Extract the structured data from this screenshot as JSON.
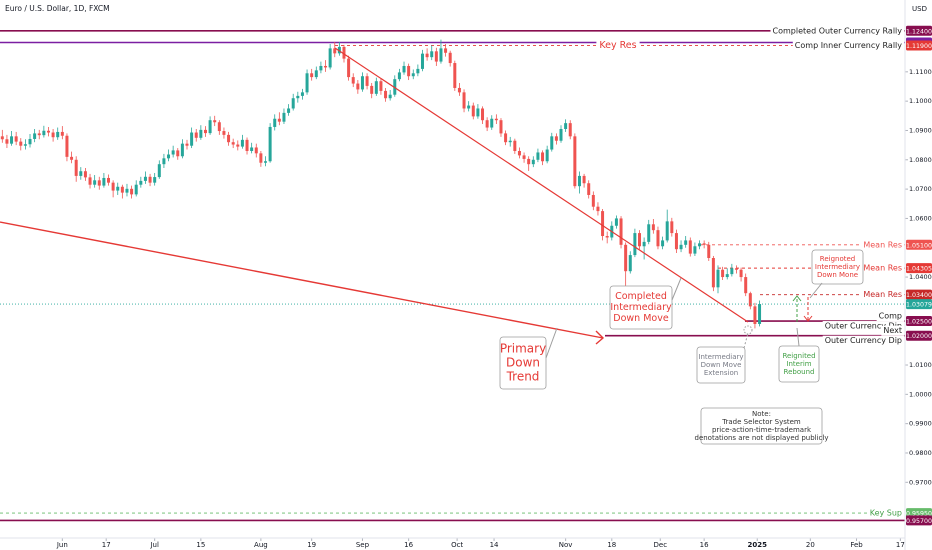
{
  "chart_data": {
    "type": "candlestick",
    "title": "Euro / U.S. Dollar, 1D, FXCM",
    "currency": "USD",
    "up_color": "#26a69a",
    "down_color": "#ef5350",
    "xlim": [
      -0.5,
      195.5
    ],
    "xticks": [
      {
        "value": 13,
        "label": "Jun"
      },
      {
        "value": 22.5,
        "label": "17"
      },
      {
        "value": 33,
        "label": "Jul"
      },
      {
        "value": 43,
        "label": "15"
      },
      {
        "value": 56,
        "label": "Aug"
      },
      {
        "value": 67,
        "label": "19"
      },
      {
        "value": 78,
        "label": "Sep"
      },
      {
        "value": 88,
        "label": "16"
      },
      {
        "value": 98.5,
        "label": "Oct"
      },
      {
        "value": 106.5,
        "label": "14"
      },
      {
        "value": 122,
        "label": "Nov"
      },
      {
        "value": 132,
        "label": "18"
      },
      {
        "value": 142.5,
        "label": "Dec"
      },
      {
        "value": 152,
        "label": "16"
      },
      {
        "value": 163.5,
        "label": "2025"
      },
      {
        "value": 175,
        "label": "20"
      },
      {
        "value": 185,
        "label": "Feb"
      },
      {
        "value": 194.5,
        "label": "17"
      }
    ],
    "ylim": [
      0.951,
      1.1345
    ],
    "yticks": [
      {
        "value": 1.11,
        "label": "1.11000"
      },
      {
        "value": 1.1,
        "label": "1.10000"
      },
      {
        "value": 1.09,
        "label": "1.09000"
      },
      {
        "value": 1.08,
        "label": "1.08000"
      },
      {
        "value": 1.07,
        "label": "1.07000"
      },
      {
        "value": 1.06,
        "label": "1.06000"
      },
      {
        "value": 1.04,
        "label": "1.04000"
      },
      {
        "value": 1.01,
        "label": "1.01000"
      },
      {
        "value": 1.0,
        "label": "1.00000"
      },
      {
        "value": 0.99,
        "label": "0.99000"
      },
      {
        "value": 0.98,
        "label": "0.98000"
      },
      {
        "value": 0.97,
        "label": "0.97000"
      }
    ],
    "last_price": {
      "value": 1.03079,
      "label": "1.03079",
      "color": "#26a69a"
    },
    "levels": [
      {
        "value": 1.124,
        "label": "1.12400",
        "color": "#880e4f",
        "style": "solid",
        "notes": [
          "Completed Outer Currency Rally"
        ],
        "text_color": "#222222"
      },
      {
        "value": 1.12,
        "label": "1.12000",
        "color": "#7b1fa2",
        "style": "solid",
        "notes": [],
        "text_color": "#222222"
      },
      {
        "value": 1.119,
        "label": "1.11900",
        "color": "#e53935",
        "style": "dashed",
        "notes": [
          "Comp Inner Currency Rally"
        ],
        "text_color": "#222222"
      },
      {
        "value": 1.051,
        "label": "1.05100",
        "color": "#ef5350",
        "style": "dashed",
        "notes": [
          "Mean Res"
        ],
        "text_color": "#ef5350"
      },
      {
        "value": 1.04305,
        "label": "1.04305",
        "color": "#e53935",
        "style": "dashed",
        "notes": [
          "Mean Res"
        ],
        "text_color": "#e53935"
      },
      {
        "value": 1.034,
        "label": "1.03400",
        "color": "#c62828",
        "style": "dashed",
        "notes": [
          "Mean Res"
        ],
        "text_color": "#c62828"
      },
      {
        "value": 1.025,
        "label": "1.02500",
        "color": "#880e4f",
        "style": "solid",
        "notes": [
          "Comp",
          "Outer Currency Dip"
        ],
        "text_color": "#222222"
      },
      {
        "value": 1.02,
        "label": "1.02000",
        "color": "#880e4f",
        "style": "solid",
        "notes": [
          "Next",
          "Outer Currency Dip"
        ],
        "text_color": "#222222"
      },
      {
        "value": 0.9595,
        "label": "0.95950",
        "color": "#66bb6a",
        "style": "dashed",
        "notes": [
          "Key Sup"
        ],
        "text_color": "#43a047"
      },
      {
        "value": 0.957,
        "label": "0.95700",
        "color": "#880e4f",
        "style": "solid",
        "notes": [],
        "text_color": "#222222"
      }
    ],
    "key_res": "Key Res",
    "annotations": [
      {
        "lines": [
          "Primary",
          "Down",
          "Trend"
        ],
        "color": "#e53935"
      },
      {
        "lines": [
          "Completed",
          "Intermediary",
          "Down Move"
        ],
        "color": "#e53935"
      },
      {
        "lines": [
          "Intermediary",
          "Down Move",
          "Extension"
        ],
        "color": "#787b86"
      },
      {
        "lines": [
          "Reignited",
          "Interim",
          "Rebound"
        ],
        "color": "#43a047"
      },
      {
        "lines": [
          "Reignoted",
          "Intermediary",
          "Down Mone"
        ],
        "color": "#e53935"
      },
      {
        "lines": [
          "Note:",
          "Trade Selector System",
          "price-action-time-trademark",
          "denotations are not displayed publicly"
        ],
        "color": "#333333"
      }
    ],
    "ohlc": [
      [
        1.088,
        1.0902,
        1.0858,
        1.087
      ],
      [
        1.087,
        1.0885,
        1.084,
        1.0855
      ],
      [
        1.0855,
        1.0898,
        1.0848,
        1.088
      ],
      [
        1.088,
        1.0895,
        1.085,
        1.0862
      ],
      [
        1.0862,
        1.0874,
        1.0832,
        1.0848
      ],
      [
        1.0848,
        1.087,
        1.0835,
        1.0853
      ],
      [
        1.0853,
        1.0888,
        1.0842,
        1.0871
      ],
      [
        1.0871,
        1.0905,
        1.086,
        1.089
      ],
      [
        1.089,
        1.0902,
        1.087,
        1.0884
      ],
      [
        1.0884,
        1.0916,
        1.0876,
        1.0899
      ],
      [
        1.0899,
        1.0912,
        1.088,
        1.0893
      ],
      [
        1.0893,
        1.0905,
        1.0862,
        1.0877
      ],
      [
        1.0877,
        1.091,
        1.0868,
        1.0895
      ],
      [
        1.0895,
        1.0915,
        1.087,
        1.0882
      ],
      [
        1.0882,
        1.089,
        1.0795,
        1.081
      ],
      [
        1.081,
        1.0828,
        1.0788,
        1.08
      ],
      [
        1.08,
        1.0812,
        1.0725,
        1.0745
      ],
      [
        1.0745,
        1.0775,
        1.0732,
        1.0761
      ],
      [
        1.0761,
        1.0772,
        1.0728,
        1.074
      ],
      [
        1.074,
        1.0752,
        1.0702,
        1.0715
      ],
      [
        1.0715,
        1.0748,
        1.0705,
        1.073
      ],
      [
        1.073,
        1.0742,
        1.0698,
        1.0712
      ],
      [
        1.0712,
        1.0755,
        1.0705,
        1.0738
      ],
      [
        1.0738,
        1.075,
        1.0712,
        1.0722
      ],
      [
        1.0722,
        1.073,
        1.0672,
        1.0695
      ],
      [
        1.0695,
        1.0722,
        1.068,
        1.0708
      ],
      [
        1.0708,
        1.0715,
        1.0668,
        1.0688
      ],
      [
        1.0688,
        1.0718,
        1.0675,
        1.0701
      ],
      [
        1.0701,
        1.0712,
        1.0668,
        1.0682
      ],
      [
        1.0682,
        1.073,
        1.0675,
        1.0715
      ],
      [
        1.0715,
        1.0742,
        1.0705,
        1.0728
      ],
      [
        1.0728,
        1.076,
        1.0718,
        1.0742
      ],
      [
        1.0742,
        1.0752,
        1.071,
        1.0722
      ],
      [
        1.0722,
        1.0755,
        1.0712,
        1.0741
      ],
      [
        1.0741,
        1.0798,
        1.0735,
        1.0785
      ],
      [
        1.0785,
        1.082,
        1.0772,
        1.0805
      ],
      [
        1.0805,
        1.0835,
        1.0795,
        1.0818
      ],
      [
        1.0818,
        1.0848,
        1.0808,
        1.0832
      ],
      [
        1.0832,
        1.084,
        1.08,
        1.0812
      ],
      [
        1.0812,
        1.087,
        1.0805,
        1.0855
      ],
      [
        1.0855,
        1.0868,
        1.0835,
        1.0848
      ],
      [
        1.0848,
        1.091,
        1.084,
        1.0893
      ],
      [
        1.0893,
        1.0905,
        1.0862,
        1.0875
      ],
      [
        1.0875,
        1.0918,
        1.0868,
        1.0902
      ],
      [
        1.0902,
        1.0915,
        1.0878,
        1.0891
      ],
      [
        1.0891,
        1.0948,
        1.0885,
        1.0935
      ],
      [
        1.0935,
        1.095,
        1.0915,
        1.0928
      ],
      [
        1.0928,
        1.0935,
        1.0885,
        1.0898
      ],
      [
        1.0898,
        1.091,
        1.0872,
        1.0885
      ],
      [
        1.0885,
        1.0895,
        1.0848,
        1.086
      ],
      [
        1.086,
        1.0872,
        1.084,
        1.0852
      ],
      [
        1.0852,
        1.0866,
        1.0832,
        1.0845
      ],
      [
        1.0845,
        1.0885,
        1.0838,
        1.0868
      ],
      [
        1.0868,
        1.0876,
        1.0818,
        1.083
      ],
      [
        1.083,
        1.0858,
        1.0822,
        1.0842
      ],
      [
        1.0842,
        1.0855,
        1.0808,
        1.0822
      ],
      [
        1.0822,
        1.083,
        1.0776,
        1.079
      ],
      [
        1.079,
        1.0812,
        1.0778,
        1.0795
      ],
      [
        1.0795,
        1.0925,
        1.079,
        1.0912
      ],
      [
        1.0912,
        1.0955,
        1.09,
        1.094
      ],
      [
        1.094,
        1.0962,
        1.0918,
        1.093
      ],
      [
        1.093,
        1.0975,
        1.0922,
        1.096
      ],
      [
        1.096,
        1.099,
        1.095,
        1.0975
      ],
      [
        1.0975,
        1.1025,
        1.0968,
        1.101
      ],
      [
        1.101,
        1.1032,
        1.0995,
        1.1018
      ],
      [
        1.1018,
        1.1042,
        1.1005,
        1.103
      ],
      [
        1.103,
        1.1108,
        1.1022,
        1.1095
      ],
      [
        1.1095,
        1.111,
        1.107,
        1.1082
      ],
      [
        1.1082,
        1.1118,
        1.1075,
        1.1105
      ],
      [
        1.1105,
        1.1135,
        1.1095,
        1.112
      ],
      [
        1.112,
        1.114,
        1.11,
        1.1115
      ],
      [
        1.1115,
        1.1195,
        1.1108,
        1.118
      ],
      [
        1.118,
        1.1202,
        1.115,
        1.1163
      ],
      [
        1.1163,
        1.1202,
        1.1155,
        1.1185
      ],
      [
        1.1185,
        1.1192,
        1.1132,
        1.1145
      ],
      [
        1.1145,
        1.1155,
        1.107,
        1.1082
      ],
      [
        1.1082,
        1.1095,
        1.1048,
        1.106
      ],
      [
        1.106,
        1.1072,
        1.1025,
        1.104
      ],
      [
        1.104,
        1.1098,
        1.1032,
        1.1085
      ],
      [
        1.1085,
        1.1095,
        1.104,
        1.1052
      ],
      [
        1.1052,
        1.1062,
        1.101,
        1.1025
      ],
      [
        1.1025,
        1.108,
        1.1018,
        1.1068
      ],
      [
        1.1068,
        1.1078,
        1.1022,
        1.1035
      ],
      [
        1.1035,
        1.1045,
        1.0998,
        1.101
      ],
      [
        1.101,
        1.1038,
        1.1002,
        1.1022
      ],
      [
        1.1022,
        1.1088,
        1.1015,
        1.1075
      ],
      [
        1.1075,
        1.111,
        1.1068,
        1.1098
      ],
      [
        1.1098,
        1.1135,
        1.109,
        1.112
      ],
      [
        1.112,
        1.1128,
        1.1072,
        1.1085
      ],
      [
        1.1085,
        1.1108,
        1.1075,
        1.1095
      ],
      [
        1.1095,
        1.1125,
        1.1085,
        1.111
      ],
      [
        1.111,
        1.1175,
        1.1102,
        1.1162
      ],
      [
        1.1162,
        1.118,
        1.1138,
        1.115
      ],
      [
        1.115,
        1.119,
        1.114,
        1.117
      ],
      [
        1.117,
        1.1182,
        1.112,
        1.1135
      ],
      [
        1.1135,
        1.121,
        1.1128,
        1.118
      ],
      [
        1.118,
        1.1195,
        1.1152,
        1.1165
      ],
      [
        1.1165,
        1.1172,
        1.1118,
        1.113
      ],
      [
        1.113,
        1.1138,
        1.1035,
        1.1045
      ],
      [
        1.1045,
        1.1062,
        1.1018,
        1.103
      ],
      [
        1.103,
        1.104,
        1.0962,
        1.0975
      ],
      [
        1.0975,
        1.1,
        1.0965,
        1.0985
      ],
      [
        1.0985,
        1.0995,
        1.0938,
        1.0948
      ],
      [
        1.0948,
        1.099,
        1.094,
        1.0975
      ],
      [
        1.0975,
        1.0982,
        1.0922,
        1.0935
      ],
      [
        1.0935,
        1.0945,
        1.0898,
        1.091
      ],
      [
        1.091,
        1.0952,
        1.0902,
        1.094
      ],
      [
        1.094,
        1.0955,
        1.0922,
        1.0935
      ],
      [
        1.0935,
        1.0942,
        1.0878,
        1.089
      ],
      [
        1.089,
        1.09,
        1.085,
        1.086
      ],
      [
        1.086,
        1.0878,
        1.0845,
        1.0865
      ],
      [
        1.0865,
        1.0872,
        1.082,
        1.083
      ],
      [
        1.083,
        1.0842,
        1.0805,
        1.0815
      ],
      [
        1.0815,
        1.0825,
        1.079,
        1.0803
      ],
      [
        1.0803,
        1.0812,
        1.0762,
        1.0785
      ],
      [
        1.0785,
        1.0812,
        1.0775,
        1.08
      ],
      [
        1.08,
        1.0838,
        1.0792,
        1.0825
      ],
      [
        1.0825,
        1.0832,
        1.0782,
        1.0795
      ],
      [
        1.0795,
        1.0848,
        1.0788,
        1.0835
      ],
      [
        1.0835,
        1.0892,
        1.0828,
        1.088
      ],
      [
        1.088,
        1.089,
        1.0852,
        1.0865
      ],
      [
        1.0865,
        1.0918,
        1.0858,
        1.0905
      ],
      [
        1.0905,
        1.0938,
        1.0895,
        1.0925
      ],
      [
        1.0925,
        1.0935,
        1.087,
        1.088
      ],
      [
        1.088,
        1.089,
        1.0702,
        1.071
      ],
      [
        1.071,
        1.076,
        1.0685,
        1.0745
      ],
      [
        1.0745,
        1.0752,
        1.0705,
        1.072
      ],
      [
        1.072,
        1.073,
        1.0668,
        1.068
      ],
      [
        1.068,
        1.0692,
        1.0628,
        1.064
      ],
      [
        1.064,
        1.0655,
        1.061,
        1.0625
      ],
      [
        1.0625,
        1.0632,
        1.0525,
        1.054
      ],
      [
        1.054,
        1.0555,
        1.0515,
        1.0535
      ],
      [
        1.0535,
        1.059,
        1.0525,
        1.0575
      ],
      [
        1.0575,
        1.061,
        1.0565,
        1.06
      ],
      [
        1.06,
        1.0608,
        1.0498,
        1.051
      ],
      [
        1.051,
        1.0518,
        1.0332,
        1.042
      ],
      [
        1.042,
        1.0488,
        1.0412,
        1.0475
      ],
      [
        1.0475,
        1.0565,
        1.0468,
        1.055
      ],
      [
        1.055,
        1.056,
        1.0495,
        1.0505
      ],
      [
        1.0505,
        1.0535,
        1.046,
        1.052
      ],
      [
        1.052,
        1.0595,
        1.0512,
        1.058
      ],
      [
        1.058,
        1.0598,
        1.0548,
        1.056
      ],
      [
        1.056,
        1.0572,
        1.0495,
        1.0505
      ],
      [
        1.0505,
        1.0538,
        1.0495,
        1.0525
      ],
      [
        1.0525,
        1.063,
        1.0518,
        1.059
      ],
      [
        1.059,
        1.0602,
        1.0538,
        1.055
      ],
      [
        1.055,
        1.0562,
        1.0482,
        1.0495
      ],
      [
        1.0495,
        1.0525,
        1.0485,
        1.051
      ],
      [
        1.051,
        1.054,
        1.05,
        1.0525
      ],
      [
        1.0525,
        1.0535,
        1.047,
        1.048
      ],
      [
        1.048,
        1.0518,
        1.0472,
        1.0505
      ],
      [
        1.0505,
        1.0525,
        1.0495,
        1.0515
      ],
      [
        1.0515,
        1.0525,
        1.0498,
        1.051
      ],
      [
        1.051,
        1.052,
        1.0455,
        1.0465
      ],
      [
        1.0465,
        1.0472,
        1.0352,
        1.0365
      ],
      [
        1.0365,
        1.044,
        1.0345,
        1.0425
      ],
      [
        1.0425,
        1.0435,
        1.039,
        1.04
      ],
      [
        1.04,
        1.043,
        1.0392,
        1.041
      ],
      [
        1.041,
        1.0445,
        1.0402,
        1.043
      ],
      [
        1.043,
        1.044,
        1.0412,
        1.0425
      ],
      [
        1.0425,
        1.0432,
        1.0385,
        1.04
      ],
      [
        1.04,
        1.0412,
        1.0335,
        1.0345
      ],
      [
        1.0345,
        1.035,
        1.029,
        1.03
      ],
      [
        1.03,
        1.0312,
        1.0225,
        1.024
      ],
      [
        1.024,
        1.032,
        1.0232,
        1.0308
      ]
    ]
  }
}
